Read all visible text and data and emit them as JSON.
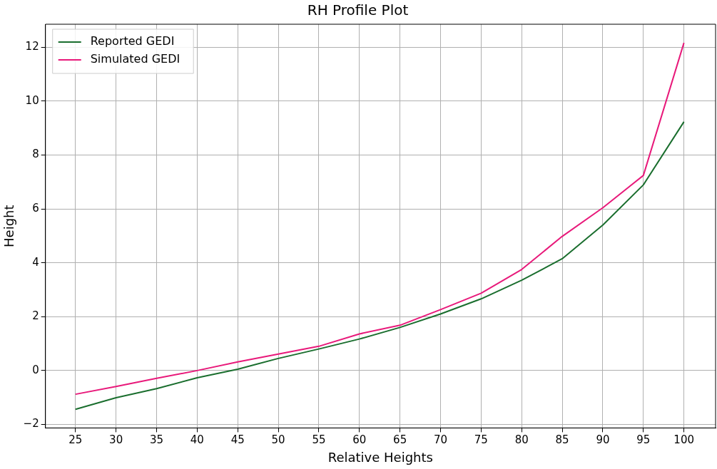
{
  "chart_data": {
    "type": "line",
    "title": "RH Profile Plot",
    "xlabel": "Relative Heights",
    "ylabel": "Height",
    "x": [
      25,
      30,
      35,
      40,
      45,
      50,
      55,
      60,
      65,
      70,
      75,
      80,
      85,
      90,
      95,
      100
    ],
    "series": [
      {
        "name": "Reported GEDI",
        "color": "#1a6e2e",
        "values": [
          -1.44,
          -1.01,
          -0.67,
          -0.27,
          0.05,
          0.45,
          0.8,
          1.17,
          1.6,
          2.1,
          2.66,
          3.35,
          4.15,
          5.4,
          6.89,
          9.23
        ]
      },
      {
        "name": "Simulated GEDI",
        "color": "#e8197a",
        "values": [
          -0.88,
          -0.59,
          -0.29,
          0.0,
          0.32,
          0.61,
          0.9,
          1.36,
          1.68,
          2.26,
          2.87,
          3.75,
          4.98,
          6.04,
          7.24,
          12.16
        ]
      }
    ],
    "xlim": [
      21.3,
      103.9
    ],
    "xticks": [
      25,
      30,
      35,
      40,
      45,
      50,
      55,
      60,
      65,
      70,
      75,
      80,
      85,
      90,
      95,
      100
    ],
    "ylim": [
      -2.13,
      12.85
    ],
    "yticks": [
      -2,
      0,
      2,
      4,
      6,
      8,
      10,
      12
    ],
    "grid": true,
    "legend": "top left",
    "marker": "none",
    "line_style": "solid"
  }
}
